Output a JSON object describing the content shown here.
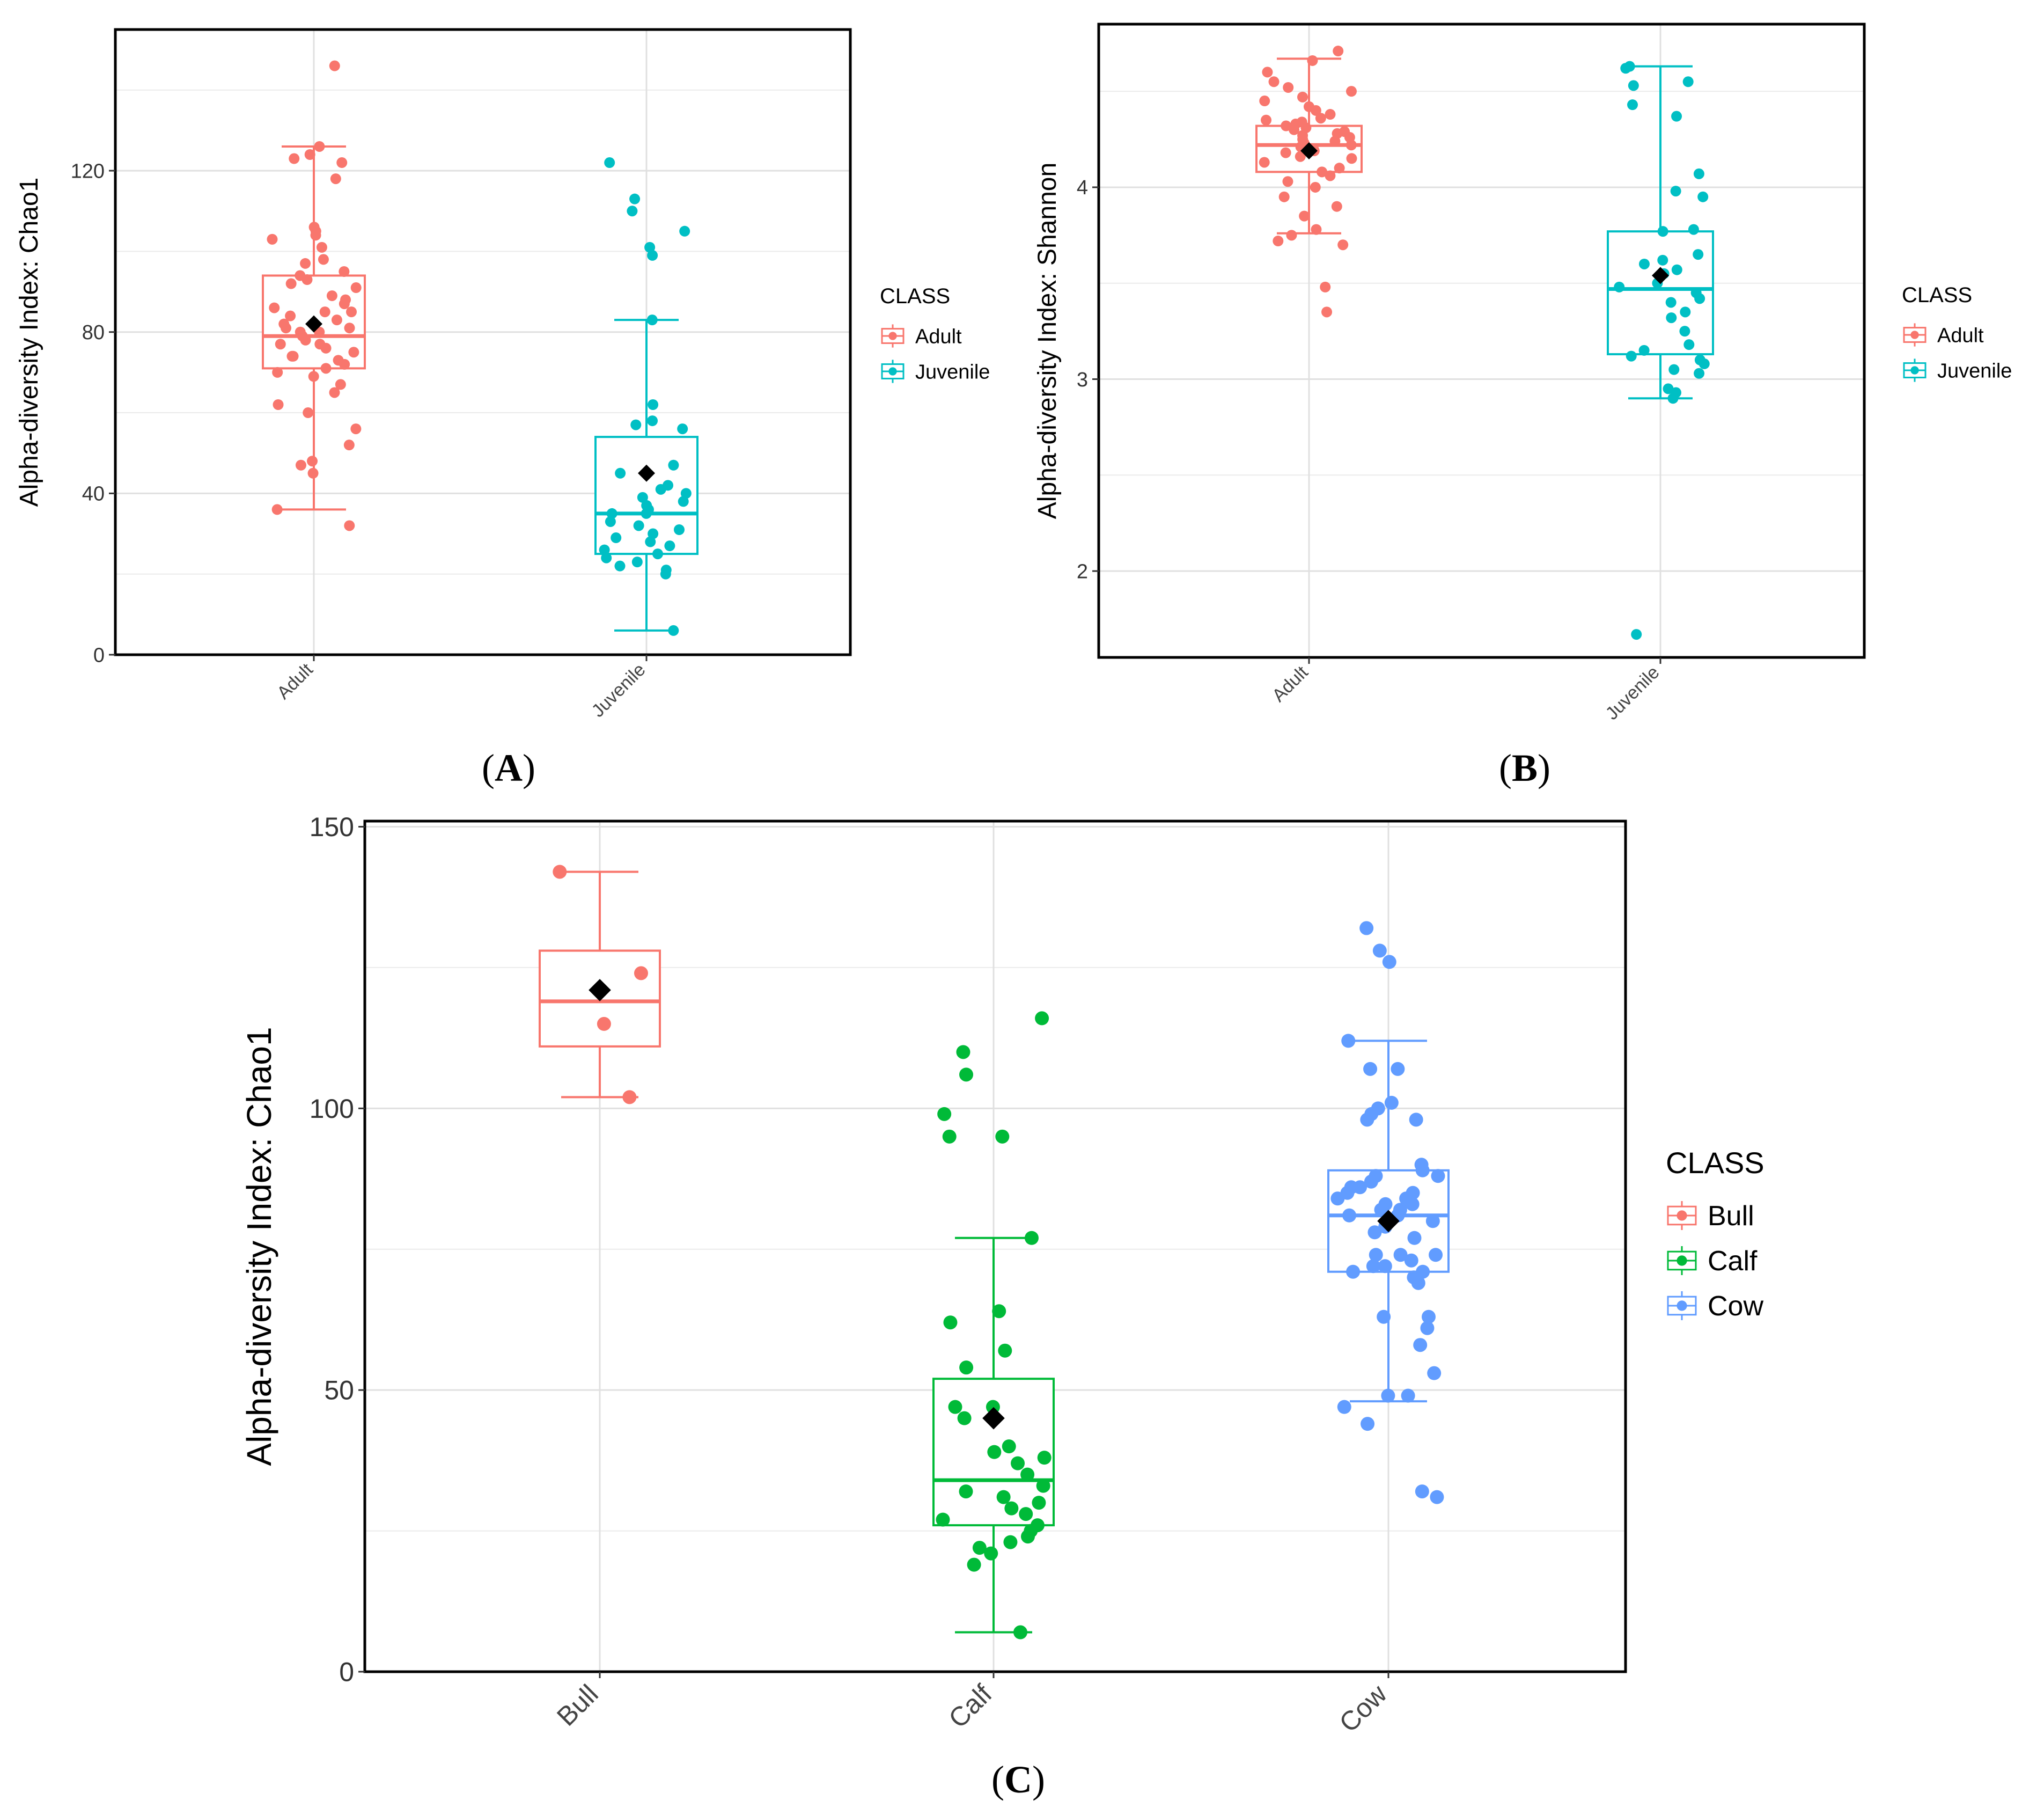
{
  "chart_data": [
    {
      "panel_label": "A",
      "type": "box",
      "title": "",
      "xlabel": "",
      "ylabel": "Alpha-diversity Index: Chao1",
      "ylim": [
        0,
        155
      ],
      "yticks": [
        0,
        40,
        80,
        120
      ],
      "ytick_labels": [
        "0",
        "40",
        "80",
        "120"
      ],
      "categories": [
        "Adult",
        "Juvenile"
      ],
      "legend": {
        "title": "CLASS",
        "entries": [
          "Adult",
          "Juvenile"
        ],
        "position": "right"
      },
      "colors": [
        "#F8766D",
        "#00BFC4"
      ],
      "boxes": [
        {
          "name": "Adult",
          "whisker_low": 36,
          "q1": 71,
          "median": 79,
          "q3": 94,
          "whisker_high": 126,
          "mean": 82,
          "points": [
            146,
            126,
            124,
            123,
            122,
            118,
            106,
            105,
            104,
            103,
            101,
            98,
            97,
            95,
            94,
            93,
            92,
            91,
            89,
            88,
            87,
            86,
            85,
            85,
            84,
            83,
            82,
            81,
            81,
            80,
            80,
            79,
            78,
            77,
            77,
            76,
            75,
            74,
            74,
            73,
            72,
            71,
            70,
            69,
            67,
            65,
            62,
            60,
            56,
            52,
            48,
            47,
            45,
            36,
            32
          ]
        },
        {
          "name": "Juvenile",
          "whisker_low": 6,
          "q1": 25,
          "median": 35,
          "q3": 54,
          "whisker_high": 83,
          "mean": 45,
          "points": [
            122,
            113,
            110,
            105,
            101,
            99,
            83,
            62,
            58,
            57,
            56,
            47,
            45,
            42,
            41,
            40,
            39,
            38,
            37,
            36,
            35,
            35,
            33,
            32,
            31,
            30,
            29,
            28,
            27,
            26,
            25,
            24,
            23,
            22,
            21,
            20,
            6
          ]
        }
      ]
    },
    {
      "panel_label": "B",
      "type": "box",
      "title": "",
      "xlabel": "",
      "ylabel": "Alpha-diversity Index: Shannon",
      "ylim": [
        1.55,
        4.85
      ],
      "yticks": [
        2,
        3,
        4
      ],
      "ytick_labels": [
        "2",
        "3",
        "4"
      ],
      "categories": [
        "Adult",
        "Juvenile"
      ],
      "legend": {
        "title": "CLASS",
        "entries": [
          "Adult",
          "Juvenile"
        ],
        "position": "right"
      },
      "colors": [
        "#F8766D",
        "#00BFC4"
      ],
      "boxes": [
        {
          "name": "Adult",
          "whisker_low": 3.76,
          "q1": 4.08,
          "median": 4.22,
          "q3": 4.32,
          "whisker_high": 4.67,
          "mean": 4.19,
          "points": [
            4.71,
            4.66,
            4.6,
            4.55,
            4.52,
            4.5,
            4.47,
            4.45,
            4.42,
            4.4,
            4.38,
            4.36,
            4.35,
            4.34,
            4.33,
            4.32,
            4.31,
            4.3,
            4.29,
            4.28,
            4.27,
            4.26,
            4.25,
            4.24,
            4.23,
            4.22,
            4.21,
            4.2,
            4.19,
            4.18,
            4.16,
            4.15,
            4.13,
            4.1,
            4.08,
            4.06,
            4.03,
            4.0,
            3.95,
            3.9,
            3.85,
            3.78,
            3.75,
            3.72,
            3.7,
            3.48,
            3.35
          ]
        },
        {
          "name": "Juvenile",
          "whisker_low": 2.9,
          "q1": 3.13,
          "median": 3.47,
          "q3": 3.77,
          "whisker_high": 4.63,
          "mean": 3.54,
          "points": [
            4.63,
            4.62,
            4.55,
            4.53,
            4.43,
            4.37,
            4.07,
            3.98,
            3.95,
            3.78,
            3.77,
            3.65,
            3.62,
            3.6,
            3.57,
            3.55,
            3.5,
            3.48,
            3.45,
            3.42,
            3.4,
            3.35,
            3.32,
            3.25,
            3.18,
            3.15,
            3.12,
            3.1,
            3.08,
            3.05,
            3.03,
            2.95,
            2.93,
            2.9,
            1.67
          ]
        }
      ]
    },
    {
      "panel_label": "C",
      "type": "box",
      "title": "",
      "xlabel": "",
      "ylabel": "Alpha-diversity Index: Chao1",
      "ylim": [
        0,
        151
      ],
      "yticks": [
        0,
        50,
        100,
        150
      ],
      "ytick_labels": [
        "0",
        "50",
        "100",
        "150"
      ],
      "categories": [
        "Bull",
        "Calf",
        "Cow"
      ],
      "legend": {
        "title": "CLASS",
        "entries": [
          "Bull",
          "Calf",
          "Cow"
        ],
        "position": "right"
      },
      "colors": [
        "#F8766D",
        "#00BA38",
        "#619CFF"
      ],
      "boxes": [
        {
          "name": "Bull",
          "whisker_low": 102,
          "q1": 111,
          "median": 119,
          "q3": 128,
          "whisker_high": 142,
          "mean": 121,
          "points": [
            142,
            124,
            115,
            102
          ]
        },
        {
          "name": "Calf",
          "whisker_low": 7,
          "q1": 26,
          "median": 34,
          "q3": 52,
          "whisker_high": 77,
          "mean": 45,
          "points": [
            116,
            110,
            106,
            99,
            95,
            95,
            77,
            64,
            62,
            57,
            54,
            47,
            47,
            45,
            40,
            39,
            38,
            37,
            35,
            33,
            32,
            31,
            30,
            29,
            28,
            27,
            26,
            25,
            24,
            23,
            22,
            21,
            19,
            7
          ]
        },
        {
          "name": "Cow",
          "whisker_low": 48,
          "q1": 71,
          "median": 81,
          "q3": 89,
          "whisker_high": 112,
          "mean": 80,
          "points": [
            132,
            128,
            126,
            112,
            107,
            107,
            101,
            100,
            99,
            98,
            98,
            90,
            89,
            88,
            88,
            87,
            86,
            86,
            85,
            85,
            84,
            84,
            83,
            83,
            82,
            82,
            81,
            81,
            80,
            79,
            78,
            77,
            74,
            74,
            74,
            73,
            72,
            72,
            71,
            71,
            70,
            69,
            63,
            63,
            61,
            58,
            53,
            49,
            49,
            47,
            44,
            32,
            31
          ]
        }
      ]
    }
  ]
}
